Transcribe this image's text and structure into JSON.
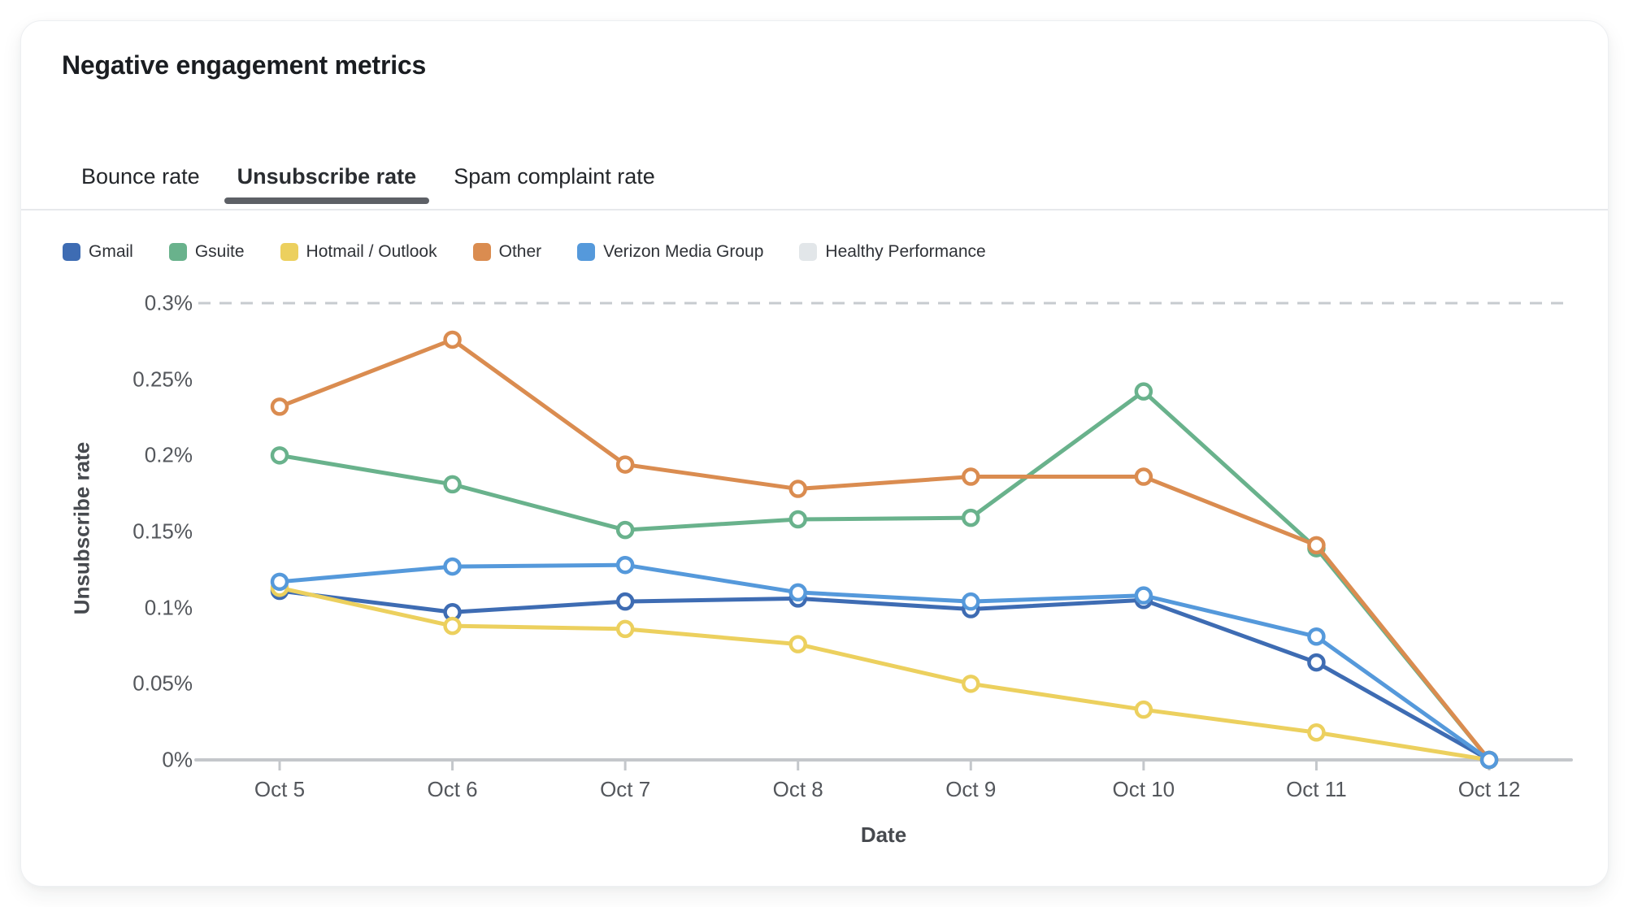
{
  "card": {
    "title": "Negative engagement metrics"
  },
  "tabs": [
    {
      "label": "Bounce rate",
      "active": false
    },
    {
      "label": "Unsubscribe rate",
      "active": true
    },
    {
      "label": "Spam complaint rate",
      "active": false
    }
  ],
  "legend": [
    {
      "label": "Gmail",
      "color": "#3e6cb3"
    },
    {
      "label": "Gsuite",
      "color": "#69b28c"
    },
    {
      "label": "Hotmail / Outlook",
      "color": "#ecd05e"
    },
    {
      "label": "Other",
      "color": "#da8c50"
    },
    {
      "label": "Verizon Media Group",
      "color": "#5599db"
    },
    {
      "label": "Healthy Performance",
      "color": "#e2e6e9"
    }
  ],
  "chart_data": {
    "type": "line",
    "x": [
      "Oct 5",
      "Oct 6",
      "Oct 7",
      "Oct 8",
      "Oct 9",
      "Oct 10",
      "Oct 11",
      "Oct 12"
    ],
    "series": [
      {
        "name": "Gmail",
        "color": "#3e6cb3",
        "values": [
          0.111,
          0.097,
          0.104,
          0.106,
          0.099,
          0.105,
          0.064,
          0
        ]
      },
      {
        "name": "Gsuite",
        "color": "#69b28c",
        "values": [
          0.2,
          0.181,
          0.151,
          0.158,
          0.159,
          0.242,
          0.139,
          0
        ]
      },
      {
        "name": "Hotmail / Outlook",
        "color": "#ecd05e",
        "values": [
          0.113,
          0.088,
          0.086,
          0.076,
          0.05,
          0.033,
          0.018,
          0
        ]
      },
      {
        "name": "Other",
        "color": "#da8c50",
        "values": [
          0.232,
          0.276,
          0.194,
          0.178,
          0.186,
          0.186,
          0.141,
          0
        ]
      },
      {
        "name": "Verizon Media Group",
        "color": "#5599db",
        "values": [
          0.117,
          0.127,
          0.128,
          0.11,
          0.104,
          0.108,
          0.081,
          0
        ]
      }
    ],
    "threshold": {
      "name": "Healthy Performance",
      "value": 0.3,
      "line_color": "#c7cbcf"
    },
    "title": "Negative engagement metrics",
    "xlabel": "Date",
    "ylabel": "Unsubscribe rate",
    "ylim": [
      0,
      0.3
    ],
    "yticks": [
      0,
      0.05,
      0.1,
      0.15,
      0.2,
      0.25,
      0.3
    ],
    "ytick_labels": [
      "0%",
      "0.05%",
      "0.1%",
      "0.15%",
      "0.2%",
      "0.25%",
      "0.3%"
    ],
    "legend_position": "top",
    "grid": false,
    "axis_color": "#c4c7cb"
  }
}
